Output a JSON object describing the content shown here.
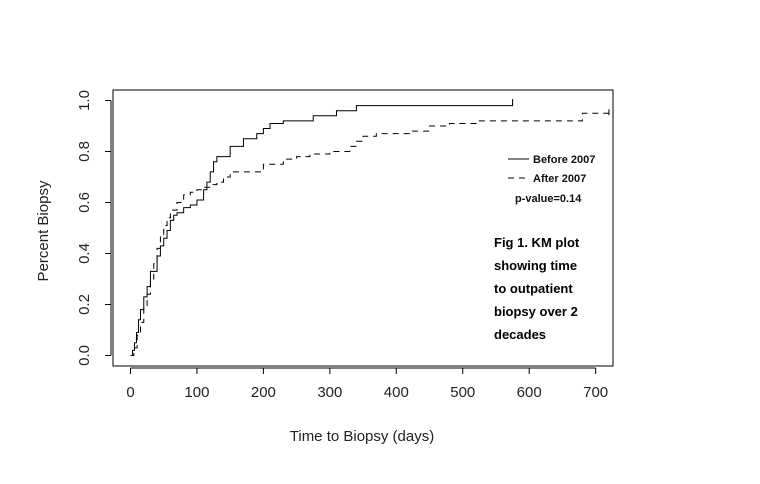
{
  "chart_data": {
    "type": "line",
    "title": "",
    "xlabel": "Time to Biopsy (days)",
    "ylabel": "Percent Biopsy",
    "xlim": [
      0,
      720
    ],
    "ylim": [
      0,
      1.0
    ],
    "xticks": [
      0,
      100,
      200,
      300,
      400,
      500,
      600,
      700
    ],
    "yticks": [
      0.0,
      0.2,
      0.4,
      0.6,
      0.8,
      1.0
    ],
    "xtick_labels": [
      "0",
      "100",
      "200",
      "300",
      "400",
      "500",
      "600",
      "700"
    ],
    "ytick_labels": [
      "0.0",
      "0.2",
      "0.4",
      "0.6",
      "0.8",
      "1.0"
    ],
    "grid": false,
    "legend": "right",
    "series": [
      {
        "name": "Before 2007",
        "style": "solid",
        "color": "#000000",
        "x": [
          0,
          3,
          6,
          9,
          12,
          15,
          20,
          25,
          30,
          40,
          45,
          50,
          55,
          60,
          65,
          70,
          80,
          90,
          100,
          110,
          115,
          120,
          125,
          130,
          150,
          170,
          190,
          200,
          210,
          230,
          275,
          310,
          340,
          575
        ],
        "y": [
          0,
          0.02,
          0.05,
          0.09,
          0.14,
          0.18,
          0.23,
          0.27,
          0.33,
          0.39,
          0.43,
          0.46,
          0.49,
          0.53,
          0.55,
          0.56,
          0.58,
          0.59,
          0.61,
          0.65,
          0.68,
          0.72,
          0.76,
          0.78,
          0.82,
          0.85,
          0.87,
          0.89,
          0.91,
          0.92,
          0.94,
          0.96,
          0.98,
          0.99
        ]
      },
      {
        "name": "After 2007",
        "style": "dashed",
        "color": "#000000",
        "x": [
          0,
          5,
          10,
          15,
          20,
          25,
          30,
          35,
          40,
          45,
          50,
          55,
          60,
          70,
          80,
          90,
          100,
          110,
          120,
          130,
          140,
          150,
          200,
          230,
          250,
          270,
          300,
          330,
          340,
          350,
          370,
          420,
          450,
          480,
          520,
          600,
          680,
          720
        ],
        "y": [
          0,
          0.03,
          0.08,
          0.13,
          0.19,
          0.24,
          0.3,
          0.36,
          0.42,
          0.47,
          0.51,
          0.54,
          0.57,
          0.6,
          0.63,
          0.64,
          0.65,
          0.66,
          0.67,
          0.68,
          0.7,
          0.72,
          0.75,
          0.77,
          0.78,
          0.79,
          0.8,
          0.82,
          0.84,
          0.86,
          0.87,
          0.88,
          0.9,
          0.91,
          0.92,
          0.92,
          0.95,
          0.95
        ]
      }
    ],
    "annotations": [
      "p-value=0.14"
    ]
  },
  "caption": {
    "lines": [
      "Fig 1. KM plot",
      "showing time",
      "to outpatient",
      "biopsy over 2",
      "decades"
    ]
  }
}
